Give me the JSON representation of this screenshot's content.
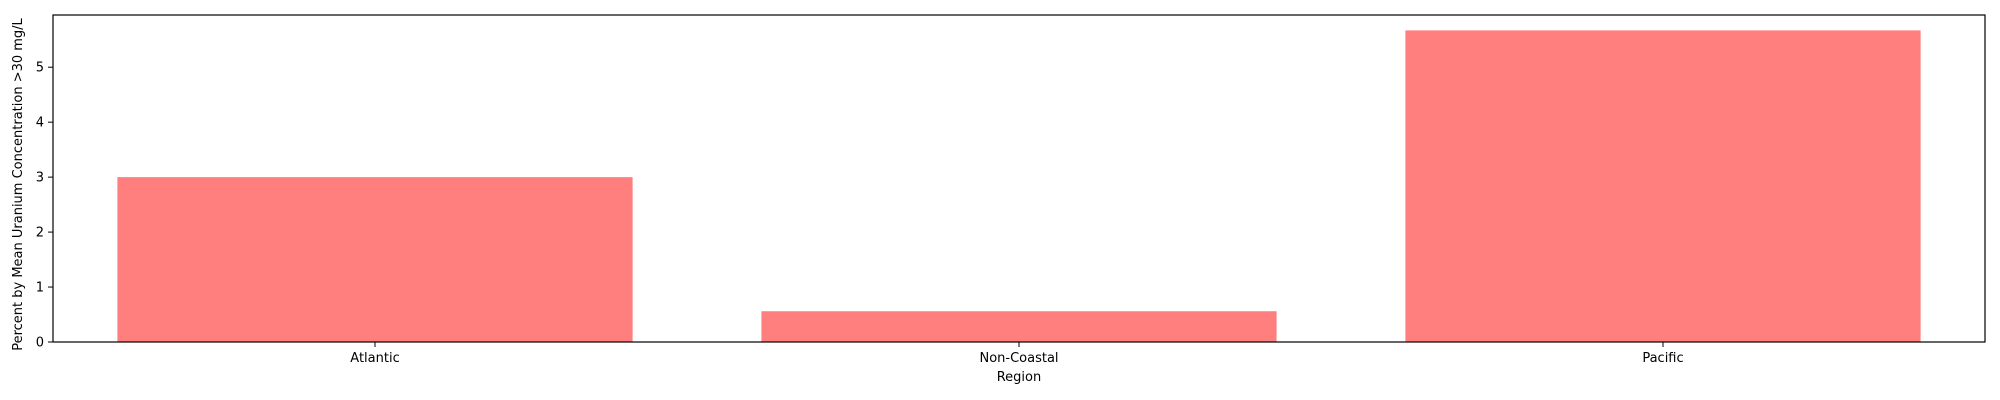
{
  "chart_data": {
    "type": "bar",
    "categories": [
      "Atlantic",
      "Non-Coastal",
      "Pacific"
    ],
    "values": [
      3.0,
      0.56,
      5.67
    ],
    "xlabel": "Region",
    "ylabel": "Percent by Mean Uranium Concentration >30 mg/L",
    "ylim": [
      0,
      5.95
    ],
    "yticks": [
      "0",
      "1",
      "2",
      "3",
      "4",
      "5"
    ],
    "grid": false,
    "legend": "none",
    "bar_color": "#ff7f7f",
    "axis_color": "#000000"
  }
}
